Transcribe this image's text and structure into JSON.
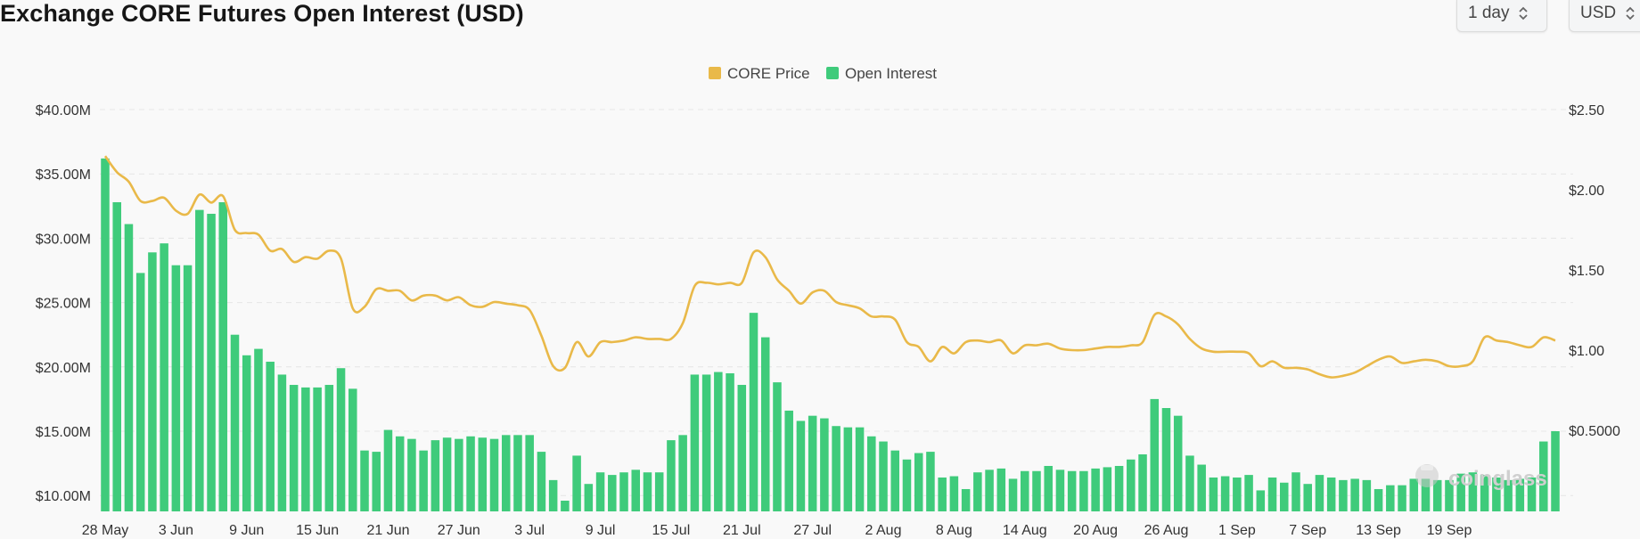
{
  "header": {
    "title": "Exchange CORE Futures Open Interest (USD)",
    "period_label": "1 day",
    "currency_label": "USD"
  },
  "watermark": {
    "text": "coinglass"
  },
  "colors": {
    "open_interest": "#3fcb7b",
    "price": "#e9b949",
    "grid": "#e6e6e6"
  },
  "icons": {
    "select_chevron": "chevron-up-down-icon",
    "watermark_logo": "coinglass-logo-icon"
  },
  "chart_data": {
    "type": "bar",
    "title": "Exchange CORE Futures Open Interest (USD)",
    "legend": {
      "placement": "top-center",
      "entries": [
        "CORE Price",
        "Open Interest"
      ]
    },
    "grid": true,
    "x_tick_labels": [
      "28 May",
      "3 Jun",
      "9 Jun",
      "15 Jun",
      "21 Jun",
      "27 Jun",
      "3 Jul",
      "9 Jul",
      "15 Jul",
      "21 Jul",
      "27 Jul",
      "2 Aug",
      "8 Aug",
      "14 Aug",
      "20 Aug",
      "26 Aug",
      "1 Sep",
      "7 Sep",
      "13 Sep",
      "19 Sep"
    ],
    "x_range": [
      "28 May",
      "21 Sep"
    ],
    "y_left": {
      "ticks": [
        "$10.00M",
        "$15.00M",
        "$20.00M",
        "$25.00M",
        "$30.00M",
        "$35.00M",
        "$40.00M"
      ],
      "range": [
        10,
        40
      ],
      "unit": "M USD"
    },
    "y_right": {
      "ticks": [
        "$0.5000",
        "$1.00",
        "$1.50",
        "$2.00",
        "$2.50"
      ],
      "range": [
        0,
        2.5
      ]
    },
    "series": [
      {
        "name": "Open Interest",
        "type": "bar",
        "axis": "left",
        "values": [
          36.2,
          32.8,
          31.1,
          27.3,
          28.9,
          29.6,
          27.9,
          27.9,
          32.2,
          31.9,
          32.8,
          22.5,
          20.9,
          21.4,
          20.4,
          19.4,
          18.6,
          18.4,
          18.4,
          18.6,
          19.9,
          18.3,
          13.5,
          13.4,
          15.1,
          14.6,
          14.4,
          13.5,
          14.3,
          14.5,
          14.4,
          14.6,
          14.5,
          14.4,
          14.7,
          14.7,
          14.7,
          13.4,
          11.2,
          9.6,
          13.1,
          10.9,
          11.8,
          11.6,
          11.8,
          12.0,
          11.8,
          11.8,
          14.3,
          14.7,
          19.4,
          19.4,
          19.6,
          19.5,
          18.6,
          24.2,
          22.3,
          18.8,
          16.6,
          15.8,
          16.2,
          16.0,
          15.4,
          15.3,
          15.3,
          14.6,
          14.2,
          13.5,
          12.8,
          13.3,
          13.4,
          11.4,
          11.5,
          10.5,
          11.8,
          12.0,
          12.1,
          11.3,
          11.9,
          11.9,
          12.3,
          12.0,
          11.9,
          11.9,
          12.1,
          12.2,
          12.3,
          12.8,
          13.2,
          17.5,
          16.8,
          16.2,
          13.1,
          12.4,
          11.4,
          11.5,
          11.4,
          11.6,
          10.4,
          11.4,
          11.0,
          11.8,
          10.9,
          11.6,
          11.4,
          11.2,
          11.3,
          11.2,
          10.5,
          10.8,
          10.8,
          11.3,
          11.3,
          11.2,
          11.2,
          11.7,
          11.8,
          11.6,
          11.4,
          11.2,
          11.3,
          11.4,
          14.2,
          15.0
        ]
      },
      {
        "name": "CORE Price",
        "type": "line",
        "axis": "right",
        "values": [
          2.21,
          2.11,
          2.05,
          1.93,
          1.93,
          1.95,
          1.87,
          1.85,
          1.97,
          1.92,
          1.96,
          1.75,
          1.73,
          1.72,
          1.62,
          1.63,
          1.55,
          1.58,
          1.57,
          1.62,
          1.57,
          1.26,
          1.27,
          1.38,
          1.37,
          1.37,
          1.31,
          1.34,
          1.34,
          1.31,
          1.33,
          1.28,
          1.27,
          1.3,
          1.29,
          1.28,
          1.25,
          1.09,
          0.9,
          0.89,
          1.05,
          0.96,
          1.05,
          1.05,
          1.06,
          1.08,
          1.07,
          1.07,
          1.07,
          1.17,
          1.4,
          1.42,
          1.41,
          1.42,
          1.42,
          1.61,
          1.58,
          1.44,
          1.37,
          1.29,
          1.36,
          1.37,
          1.3,
          1.28,
          1.26,
          1.21,
          1.21,
          1.19,
          1.05,
          1.02,
          0.93,
          1.02,
          0.98,
          1.05,
          1.06,
          1.05,
          1.06,
          0.98,
          1.03,
          1.03,
          1.04,
          1.01,
          1.0,
          1.0,
          1.01,
          1.02,
          1.02,
          1.03,
          1.05,
          1.22,
          1.21,
          1.16,
          1.07,
          1.01,
          0.99,
          0.99,
          0.99,
          0.98,
          0.9,
          0.93,
          0.89,
          0.89,
          0.88,
          0.85,
          0.83,
          0.84,
          0.86,
          0.9,
          0.94,
          0.96,
          0.92,
          0.93,
          0.94,
          0.93,
          0.9,
          0.9,
          0.93,
          1.08,
          1.06,
          1.05,
          1.03,
          1.02,
          1.08,
          1.06
        ]
      }
    ]
  }
}
